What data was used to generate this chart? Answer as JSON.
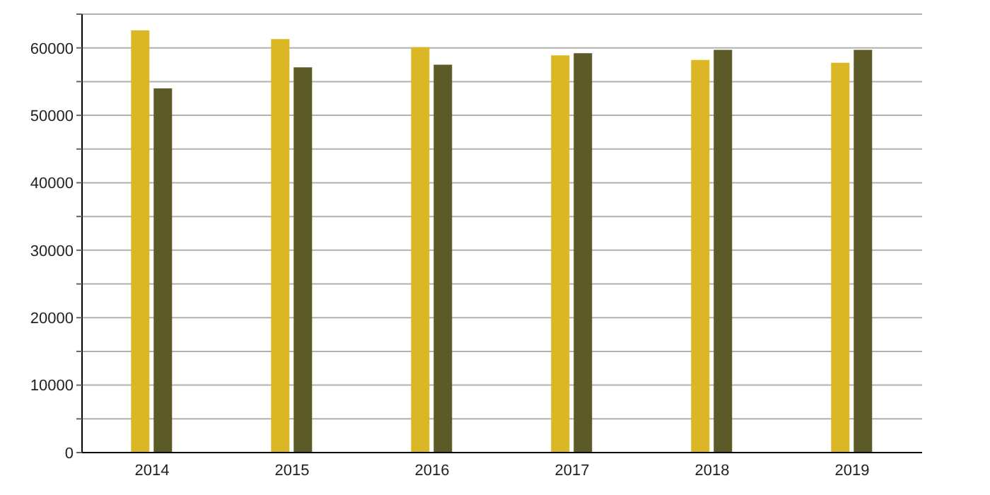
{
  "chart_data": {
    "type": "bar",
    "categories": [
      "2014",
      "2015",
      "2016",
      "2017",
      "2018",
      "2019"
    ],
    "series": [
      {
        "color": "#dbb726",
        "values": [
          62600,
          61300,
          60100,
          58900,
          58200,
          57800
        ]
      },
      {
        "color": "#5c5a26",
        "values": [
          54000,
          57100,
          57500,
          59200,
          59700,
          59700
        ]
      }
    ],
    "ylim": [
      0,
      65000
    ],
    "yticks": [
      0,
      {
        "value": 5000,
        "label": null
      },
      10000,
      {
        "value": 15000,
        "label": null
      },
      20000,
      {
        "value": 25000,
        "label": null
      },
      30000,
      {
        "value": 35000,
        "label": null
      },
      40000,
      {
        "value": 45000,
        "label": null
      },
      50000,
      {
        "value": 55000,
        "label": null
      },
      60000,
      {
        "value": 65000,
        "label": null
      }
    ],
    "grid": "y",
    "legend": false
  }
}
